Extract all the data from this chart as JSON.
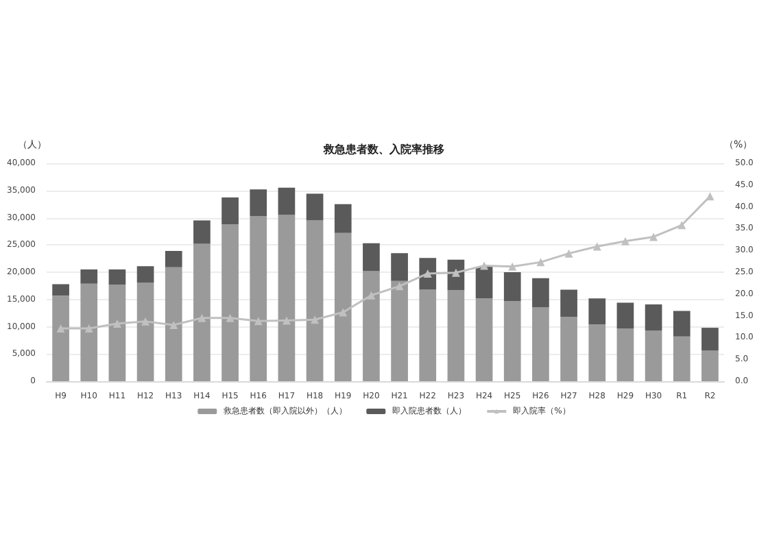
{
  "chart_data": {
    "type": "bar",
    "title": "救急患者数、入院率推移",
    "ylabel": "（人）",
    "y2label": "（%）",
    "categories": [
      "H9",
      "H10",
      "H11",
      "H12",
      "H13",
      "H14",
      "H15",
      "H16",
      "H17",
      "H18",
      "H19",
      "H20",
      "H21",
      "H22",
      "H23",
      "H24",
      "H25",
      "H26",
      "H27",
      "H28",
      "H29",
      "H30",
      "R1",
      "R2"
    ],
    "stacked": true,
    "series": [
      {
        "name": "救急患者数（即入院以外）（人）",
        "color": "#9a9a9a",
        "values": [
          15700,
          17900,
          17700,
          18100,
          20900,
          25200,
          28800,
          30300,
          30500,
          29500,
          27200,
          20200,
          18400,
          16800,
          16700,
          15200,
          14700,
          13600,
          11800,
          10400,
          9700,
          9300,
          8200,
          5600
        ]
      },
      {
        "name": "即入院患者数（人）",
        "color": "#5a5a5a",
        "values": [
          2100,
          2600,
          2800,
          3000,
          3000,
          4300,
          4900,
          4900,
          5000,
          4900,
          5300,
          5100,
          5100,
          5800,
          5600,
          5800,
          5300,
          5300,
          5000,
          4800,
          4700,
          4800,
          4700,
          4200
        ]
      },
      {
        "name": "即入院率（%）",
        "type": "line",
        "axis": "y2",
        "marker": "triangle",
        "color": "#c0c0c0",
        "values": [
          12.1,
          12.1,
          13.2,
          13.7,
          12.9,
          14.5,
          14.5,
          13.8,
          13.9,
          14.1,
          15.8,
          19.7,
          21.8,
          24.7,
          24.9,
          26.5,
          26.3,
          27.3,
          29.3,
          30.9,
          32.1,
          33.1,
          35.8,
          42.4
        ]
      }
    ],
    "ylim": [
      0,
      40000
    ],
    "yticks": [
      {
        "value": 0,
        "label": "0"
      },
      {
        "value": 5000,
        "label": "5,000"
      },
      {
        "value": 10000,
        "label": "10,000"
      },
      {
        "value": 15000,
        "label": "15,000"
      },
      {
        "value": 20000,
        "label": "20,000"
      },
      {
        "value": 25000,
        "label": "25,000"
      },
      {
        "value": 30000,
        "label": "30,000"
      },
      {
        "value": 35000,
        "label": "35,000"
      },
      {
        "value": 40000,
        "label": "40,000"
      }
    ],
    "y2lim": [
      0,
      50
    ],
    "y2ticks": [
      {
        "value": 0,
        "label": "0.0"
      },
      {
        "value": 5,
        "label": "5.0"
      },
      {
        "value": 10,
        "label": "10.0"
      },
      {
        "value": 15,
        "label": "15.0"
      },
      {
        "value": 20,
        "label": "20.0"
      },
      {
        "value": 25,
        "label": "25.0"
      },
      {
        "value": 30,
        "label": "30.0"
      },
      {
        "value": 35,
        "label": "35.0"
      },
      {
        "value": 40,
        "label": "40.0"
      },
      {
        "value": 45,
        "label": "45.0"
      },
      {
        "value": 50,
        "label": "50.0"
      }
    ],
    "grid": "y",
    "legend": "bottom"
  }
}
